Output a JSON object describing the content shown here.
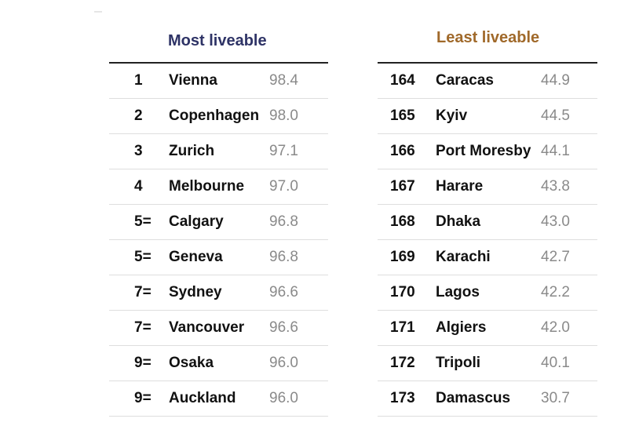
{
  "chart_data": {
    "type": "table",
    "colors": {
      "most_heading": "#2e3366",
      "least_heading": "#a0692a",
      "score": "#8a8a8a"
    },
    "tables": [
      {
        "title": "Most liveable",
        "rows": [
          {
            "rank": "1",
            "city": "Vienna",
            "score": "98.4"
          },
          {
            "rank": "2",
            "city": "Copenhagen",
            "score": "98.0"
          },
          {
            "rank": "3",
            "city": "Zurich",
            "score": "97.1"
          },
          {
            "rank": "4",
            "city": "Melbourne",
            "score": "97.0"
          },
          {
            "rank": "5=",
            "city": "Calgary",
            "score": "96.8"
          },
          {
            "rank": "5=",
            "city": "Geneva",
            "score": "96.8"
          },
          {
            "rank": "7=",
            "city": "Sydney",
            "score": "96.6"
          },
          {
            "rank": "7=",
            "city": "Vancouver",
            "score": "96.6"
          },
          {
            "rank": "9=",
            "city": "Osaka",
            "score": "96.0"
          },
          {
            "rank": "9=",
            "city": "Auckland",
            "score": "96.0"
          }
        ]
      },
      {
        "title": "Least liveable",
        "rows": [
          {
            "rank": "164",
            "city": "Caracas",
            "score": "44.9"
          },
          {
            "rank": "165",
            "city": "Kyiv",
            "score": "44.5"
          },
          {
            "rank": "166",
            "city": "Port Moresby",
            "score": "44.1"
          },
          {
            "rank": "167",
            "city": "Harare",
            "score": "43.8"
          },
          {
            "rank": "168",
            "city": "Dhaka",
            "score": "43.0"
          },
          {
            "rank": "169",
            "city": "Karachi",
            "score": "42.7"
          },
          {
            "rank": "170",
            "city": "Lagos",
            "score": "42.2"
          },
          {
            "rank": "171",
            "city": "Algiers",
            "score": "42.0"
          },
          {
            "rank": "172",
            "city": "Tripoli",
            "score": "40.1"
          },
          {
            "rank": "173",
            "city": "Damascus",
            "score": "30.7"
          }
        ]
      }
    ]
  }
}
